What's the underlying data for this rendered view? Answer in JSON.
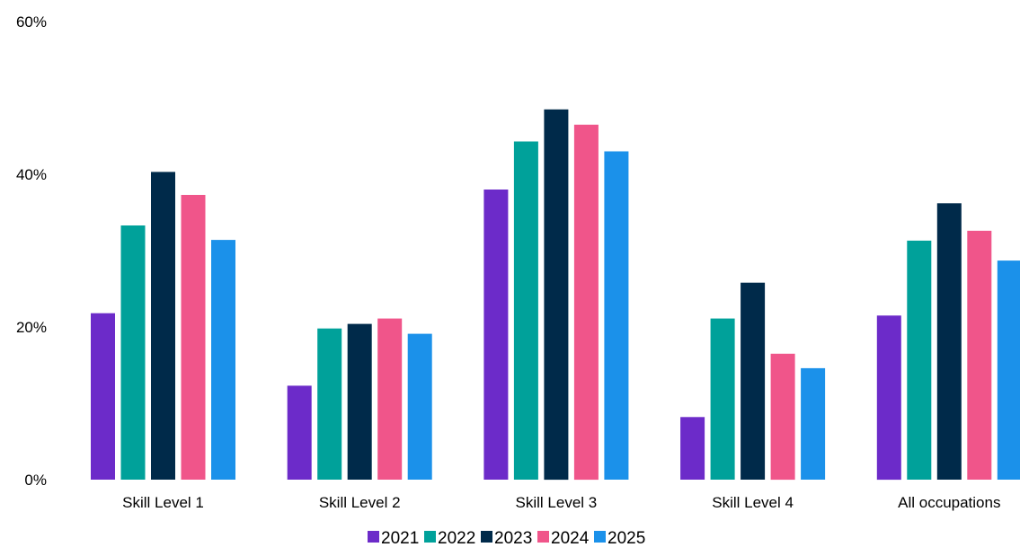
{
  "chart_data": {
    "type": "bar",
    "title": "",
    "xlabel": "",
    "ylabel": "",
    "categories": [
      "Skill Level 1",
      "Skill Level 2",
      "Skill Level 3",
      "Skill Level 4",
      "All occupations"
    ],
    "series": [
      {
        "name": "2021",
        "color": "#6C2BC9",
        "values": [
          21.8,
          12.3,
          38.0,
          8.2,
          21.5
        ]
      },
      {
        "name": "2022",
        "color": "#00A19A",
        "values": [
          33.3,
          19.8,
          44.3,
          21.1,
          31.3
        ]
      },
      {
        "name": "2023",
        "color": "#002A4A",
        "values": [
          40.3,
          20.4,
          48.5,
          25.8,
          36.2
        ]
      },
      {
        "name": "2024",
        "color": "#F0558A",
        "values": [
          37.3,
          21.1,
          46.5,
          16.5,
          32.6
        ]
      },
      {
        "name": "2025",
        "color": "#1B91EA",
        "values": [
          31.4,
          19.1,
          43.0,
          14.6,
          28.7
        ]
      }
    ],
    "ylim": [
      0,
      60
    ],
    "yticks": [
      0,
      20,
      40,
      60
    ],
    "ytick_labels": [
      "0%",
      "20%",
      "40%",
      "60%"
    ],
    "grid": false,
    "legend_position": "bottom"
  }
}
